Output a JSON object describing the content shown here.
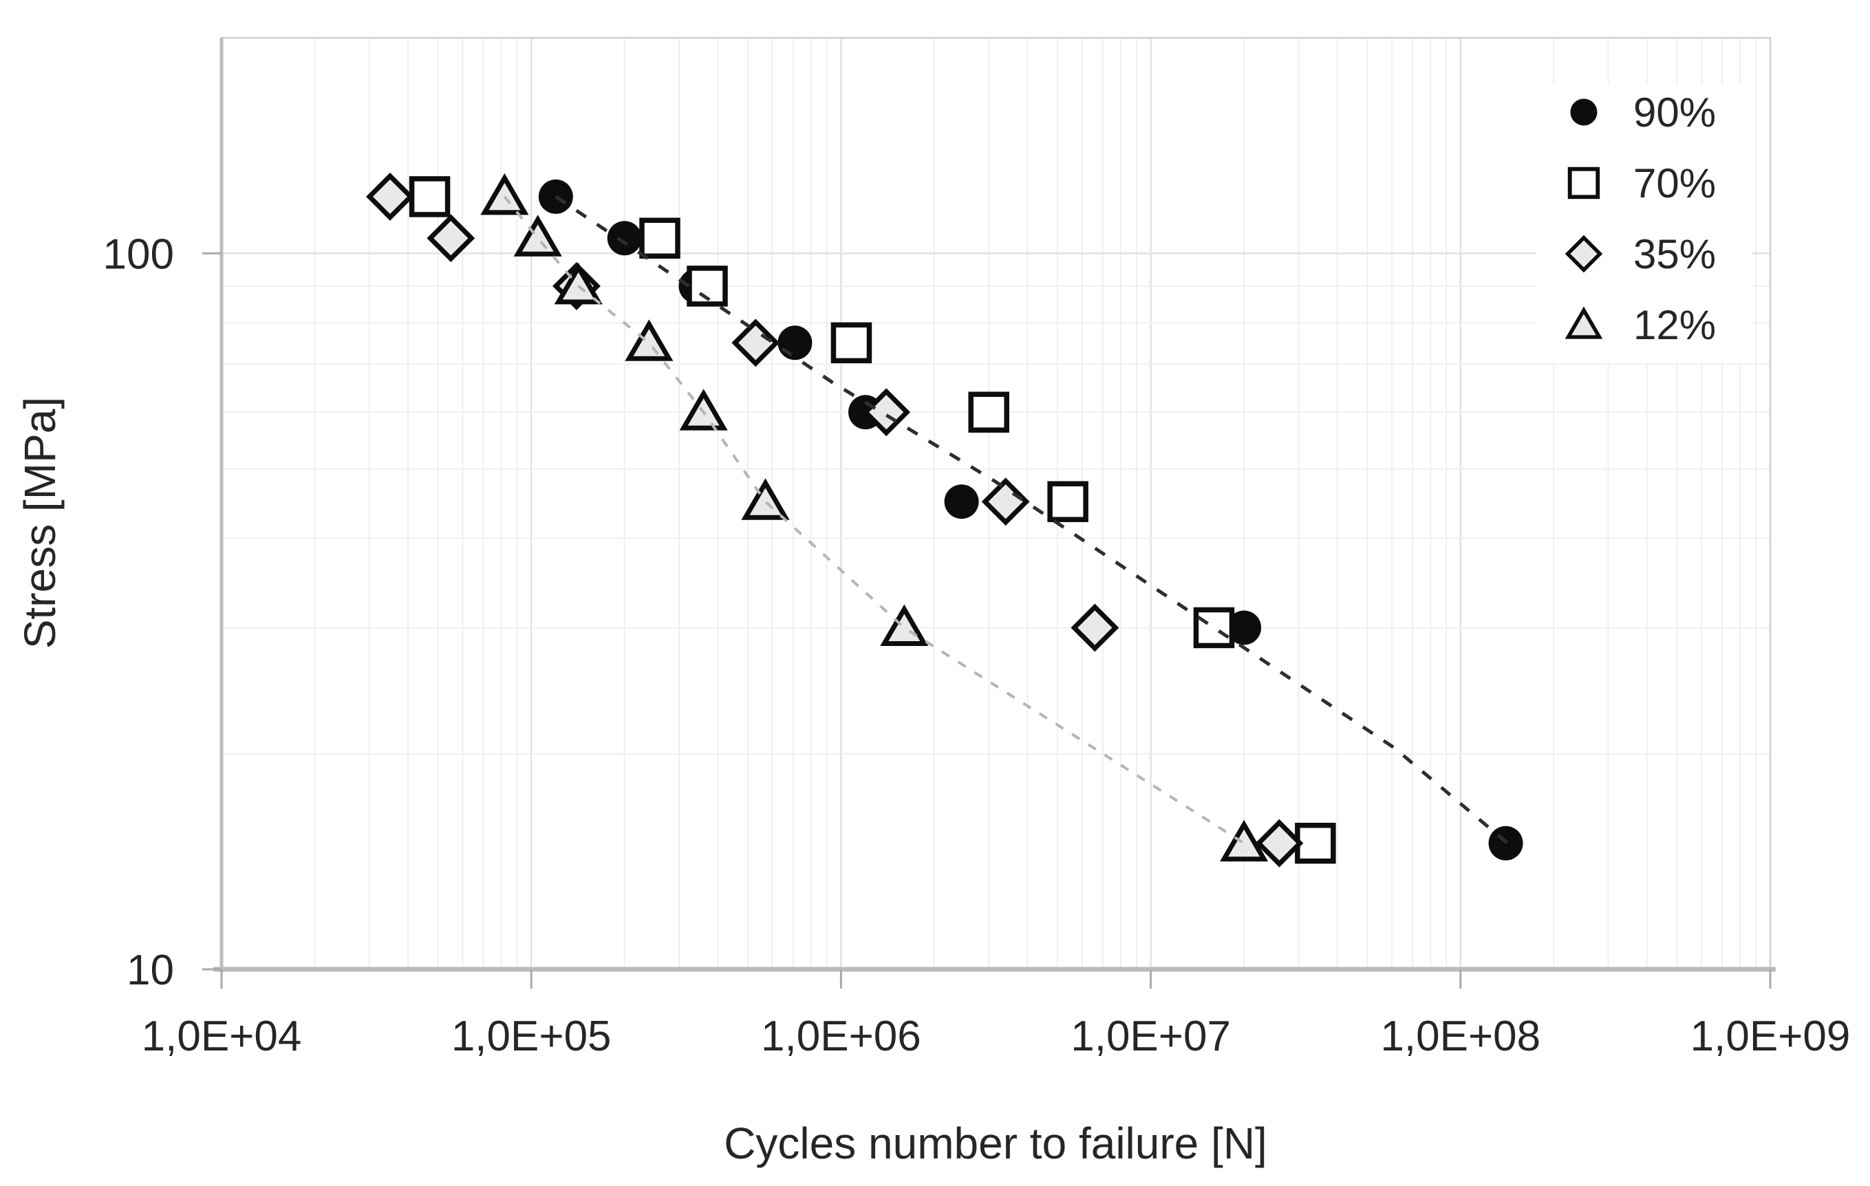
{
  "chart_data": {
    "type": "scatter",
    "title": "",
    "xlabel": "Cycles number to failure [N]",
    "ylabel": "Stress [MPa]",
    "x_scale": "log",
    "y_scale": "log",
    "xlim": [
      10000,
      1000000000
    ],
    "ylim": [
      10,
      200
    ],
    "grid": {
      "x_minor": true,
      "y_minor": true,
      "minor_color": "#efefef",
      "major_color": "#e2e2e2",
      "border_color": "#cfcfcf"
    },
    "axis_color": "#bcbcbc",
    "legend_position": "top-right",
    "x_ticks": [
      {
        "value": 10000,
        "label": "1,0E+04"
      },
      {
        "value": 100000,
        "label": "1,0E+05"
      },
      {
        "value": 1000000,
        "label": "1,0E+06"
      },
      {
        "value": 10000000,
        "label": "1,0E+07"
      },
      {
        "value": 100000000,
        "label": "1,0E+08"
      },
      {
        "value": 1000000000,
        "label": "1,0E+09"
      }
    ],
    "y_ticks": [
      {
        "value": 100,
        "label": "100"
      },
      {
        "value": 10,
        "label": "10"
      }
    ],
    "series": [
      {
        "name": "90%",
        "marker": "circle",
        "marker_fill": "#0d0d0d",
        "marker_stroke": "#0d0d0d",
        "points": [
          [
            120000,
            120
          ],
          [
            200000,
            105
          ],
          [
            340000,
            90
          ],
          [
            710000,
            75
          ],
          [
            1200000,
            60
          ],
          [
            2450000,
            45
          ],
          [
            20000000,
            30
          ],
          [
            140000000,
            15
          ]
        ]
      },
      {
        "name": "70%",
        "marker": "square",
        "marker_fill": "#ffffff",
        "marker_stroke": "#0d0d0d",
        "points": [
          [
            47000,
            120
          ],
          [
            260000,
            105
          ],
          [
            370000,
            90
          ],
          [
            1080000,
            75
          ],
          [
            3000000,
            60
          ],
          [
            5400000,
            45
          ],
          [
            16000000,
            30
          ],
          [
            34000000,
            15
          ]
        ]
      },
      {
        "name": "35%",
        "marker": "diamond",
        "marker_fill": "#e9e9e9",
        "marker_stroke": "#0d0d0d",
        "points": [
          [
            35000,
            120
          ],
          [
            55000,
            105
          ],
          [
            140000,
            90
          ],
          [
            530000,
            75
          ],
          [
            1400000,
            60
          ],
          [
            3400000,
            45
          ],
          [
            6600000,
            30
          ],
          [
            26000000,
            15
          ]
        ]
      },
      {
        "name": "12%",
        "marker": "triangle",
        "marker_fill": "#e9e9e9",
        "marker_stroke": "#0d0d0d",
        "points": [
          [
            82000,
            120
          ],
          [
            105000,
            105
          ],
          [
            142000,
            90
          ],
          [
            240000,
            75
          ],
          [
            360000,
            60
          ],
          [
            570000,
            45
          ],
          [
            1600000,
            30
          ],
          [
            20000000,
            15
          ]
        ]
      }
    ],
    "trend_lines": [
      {
        "for_series": "90%",
        "color": "#2e2e2e",
        "dash": [
          17,
          19
        ],
        "width": 5,
        "points": [
          [
            120000,
            120
          ],
          [
            940000,
            66
          ],
          [
            3150000,
            48
          ],
          [
            16000000,
            30
          ],
          [
            61000000,
            20.4
          ],
          [
            150000000,
            14.7
          ]
        ]
      },
      {
        "for_series": "12%",
        "color": "#b5b5b5",
        "dash": [
          13,
          15
        ],
        "width": 4,
        "points": [
          [
            82000,
            120
          ],
          [
            105000,
            105
          ],
          [
            142000,
            90
          ],
          [
            240000,
            75
          ],
          [
            360000,
            60
          ],
          [
            570000,
            45
          ],
          [
            1600000,
            30
          ],
          [
            20000000,
            15
          ]
        ]
      }
    ]
  }
}
